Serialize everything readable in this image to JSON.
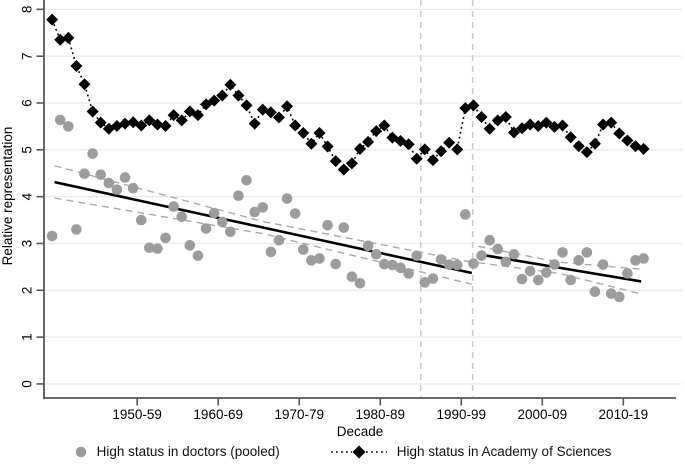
{
  "chart_data": {
    "type": "scatter",
    "title": "",
    "xlabel": "Decade",
    "ylabel": "Relative representation",
    "xlim": [
      1943,
      2021
    ],
    "ylim": [
      -0.3,
      8.2
    ],
    "grid": "horizontal",
    "y_ticks": [
      0,
      1,
      2,
      3,
      4,
      5,
      6,
      7,
      8
    ],
    "x_ticks": [
      {
        "year": 1954.5,
        "label": "1950-59"
      },
      {
        "year": 1964.5,
        "label": "1960-69"
      },
      {
        "year": 1974.5,
        "label": "1970-79"
      },
      {
        "year": 1984.5,
        "label": "1980-89"
      },
      {
        "year": 1994.5,
        "label": "1990-99"
      },
      {
        "year": 2004.5,
        "label": "2000-09"
      },
      {
        "year": 2014.5,
        "label": "2010-19"
      }
    ],
    "series": [
      {
        "name": "High status in doctors (pooled)",
        "marker": "circle",
        "color": "#9c9c9c",
        "line": "none",
        "start_year": 1944,
        "values": [
          3.16,
          5.64,
          5.5,
          3.3,
          4.49,
          4.92,
          4.47,
          4.29,
          4.15,
          4.41,
          4.18,
          3.5,
          2.91,
          2.89,
          3.12,
          3.79,
          3.57,
          2.96,
          2.74,
          3.32,
          3.65,
          3.46,
          3.25,
          4.02,
          4.35,
          3.67,
          3.77,
          2.82,
          3.07,
          3.96,
          3.64,
          2.87,
          2.64,
          2.68,
          3.39,
          2.56,
          3.34,
          2.29,
          2.15,
          2.95,
          2.77,
          2.56,
          2.54,
          2.48,
          2.36,
          2.74,
          2.17,
          2.25,
          2.66,
          2.55,
          2.54,
          3.62,
          2.57,
          2.74,
          3.07,
          2.88,
          2.61,
          2.77,
          2.24,
          2.41,
          2.22,
          2.38,
          2.55,
          2.81,
          2.22,
          2.64,
          2.81,
          1.97,
          2.55,
          1.93,
          1.86,
          2.36,
          2.64,
          2.68
        ]
      },
      {
        "name": "High status in Academy of Sciences",
        "marker": "diamond",
        "color": "#000000",
        "line": "dotted",
        "start_year": 1944,
        "values": [
          7.78,
          7.35,
          7.39,
          6.79,
          6.4,
          5.82,
          5.58,
          5.45,
          5.51,
          5.56,
          5.59,
          5.52,
          5.63,
          5.54,
          5.51,
          5.74,
          5.63,
          5.82,
          5.74,
          5.97,
          6.05,
          6.16,
          6.39,
          6.16,
          5.95,
          5.56,
          5.86,
          5.8,
          5.69,
          5.93,
          5.52,
          5.36,
          5.13,
          5.36,
          5.07,
          4.76,
          4.58,
          4.71,
          5.02,
          5.17,
          5.4,
          5.52,
          5.26,
          5.19,
          5.12,
          4.81,
          5.01,
          4.78,
          4.97,
          5.15,
          5.01,
          5.89,
          5.95,
          5.7,
          5.45,
          5.63,
          5.7,
          5.37,
          5.46,
          5.54,
          5.51,
          5.58,
          5.49,
          5.52,
          5.27,
          5.08,
          4.95,
          5.13,
          5.54,
          5.58,
          5.35,
          5.2,
          5.08,
          5.02
        ]
      }
    ],
    "trend_lines": {
      "color": "#000000",
      "segments": [
        {
          "points": [
            [
              1944.3,
              4.31
            ],
            [
              1995.8,
              2.37
            ]
          ]
        },
        {
          "points": [
            [
              1996.6,
              2.77
            ],
            [
              2016.7,
              2.19
            ]
          ]
        }
      ]
    },
    "confidence_bands": {
      "color": "#a8a8a8",
      "paths": [
        {
          "points": [
            [
              1944.3,
              4.66
            ],
            [
              1970.0,
              3.47
            ],
            [
              1995.8,
              2.6
            ]
          ]
        },
        {
          "points": [
            [
              1944.3,
              3.97
            ],
            [
              1970.0,
              3.21
            ],
            [
              1995.8,
              2.13
            ]
          ]
        },
        {
          "points": [
            [
              1996.6,
              2.94
            ],
            [
              2006.6,
              2.6
            ],
            [
              2016.7,
              2.45
            ]
          ]
        },
        {
          "points": [
            [
              1996.6,
              2.59
            ],
            [
              2006.6,
              2.36
            ],
            [
              2016.7,
              1.92
            ]
          ]
        }
      ]
    },
    "reference_lines": {
      "color": "#c5c9c9",
      "years": [
        1989.5,
        1995.9
      ]
    },
    "style": {
      "grid_color": "#e4eded",
      "axis_color": "#565656",
      "text_color": "#000000"
    }
  },
  "legend": {
    "items": [
      {
        "label": "High status in doctors (pooled)"
      },
      {
        "label": "High status in Academy of Sciences"
      }
    ]
  }
}
